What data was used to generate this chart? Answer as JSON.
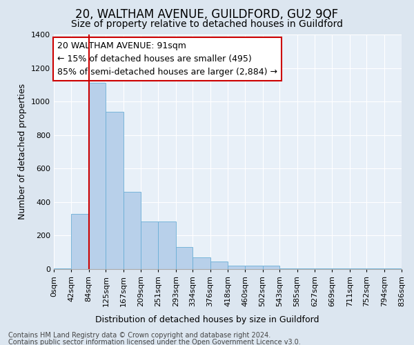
{
  "title1": "20, WALTHAM AVENUE, GUILDFORD, GU2 9QF",
  "title2": "Size of property relative to detached houses in Guildford",
  "xlabel": "Distribution of detached houses by size in Guildford",
  "ylabel": "Number of detached properties",
  "footer1": "Contains HM Land Registry data © Crown copyright and database right 2024.",
  "footer2": "Contains public sector information licensed under the Open Government Licence v3.0.",
  "annotation_line1": "20 WALTHAM AVENUE: 91sqm",
  "annotation_line2": "← 15% of detached houses are smaller (495)",
  "annotation_line3": "85% of semi-detached houses are larger (2,884) →",
  "bar_left_edges": [
    0,
    42,
    84,
    125,
    167,
    209,
    251,
    293,
    334,
    376,
    418,
    460,
    502,
    543,
    585,
    627,
    669,
    711,
    752,
    794
  ],
  "bar_widths": [
    42,
    42,
    41,
    42,
    42,
    42,
    42,
    41,
    42,
    42,
    42,
    42,
    41,
    42,
    42,
    42,
    42,
    41,
    42,
    42
  ],
  "bar_heights": [
    5,
    330,
    1110,
    940,
    460,
    285,
    285,
    130,
    70,
    45,
    20,
    20,
    20,
    3,
    3,
    3,
    3,
    3,
    3,
    5
  ],
  "tick_labels": [
    "0sqm",
    "42sqm",
    "84sqm",
    "125sqm",
    "167sqm",
    "209sqm",
    "251sqm",
    "293sqm",
    "334sqm",
    "376sqm",
    "418sqm",
    "460sqm",
    "502sqm",
    "543sqm",
    "585sqm",
    "627sqm",
    "669sqm",
    "711sqm",
    "752sqm",
    "794sqm",
    "836sqm"
  ],
  "bar_color": "#b8d0ea",
  "bar_edge_color": "#6aaed6",
  "vline_color": "#cc0000",
  "vline_x": 84,
  "bg_color": "#dce6f0",
  "plot_bg_color": "#e8f0f8",
  "ylim": [
    0,
    1400
  ],
  "yticks": [
    0,
    200,
    400,
    600,
    800,
    1000,
    1200,
    1400
  ],
  "annotation_box_facecolor": "#ffffff",
  "annotation_box_edgecolor": "#cc0000",
  "title1_fontsize": 12,
  "title2_fontsize": 10,
  "xlabel_fontsize": 9,
  "ylabel_fontsize": 9,
  "annotation_fontsize": 9,
  "tick_fontsize": 8,
  "footer_fontsize": 7
}
